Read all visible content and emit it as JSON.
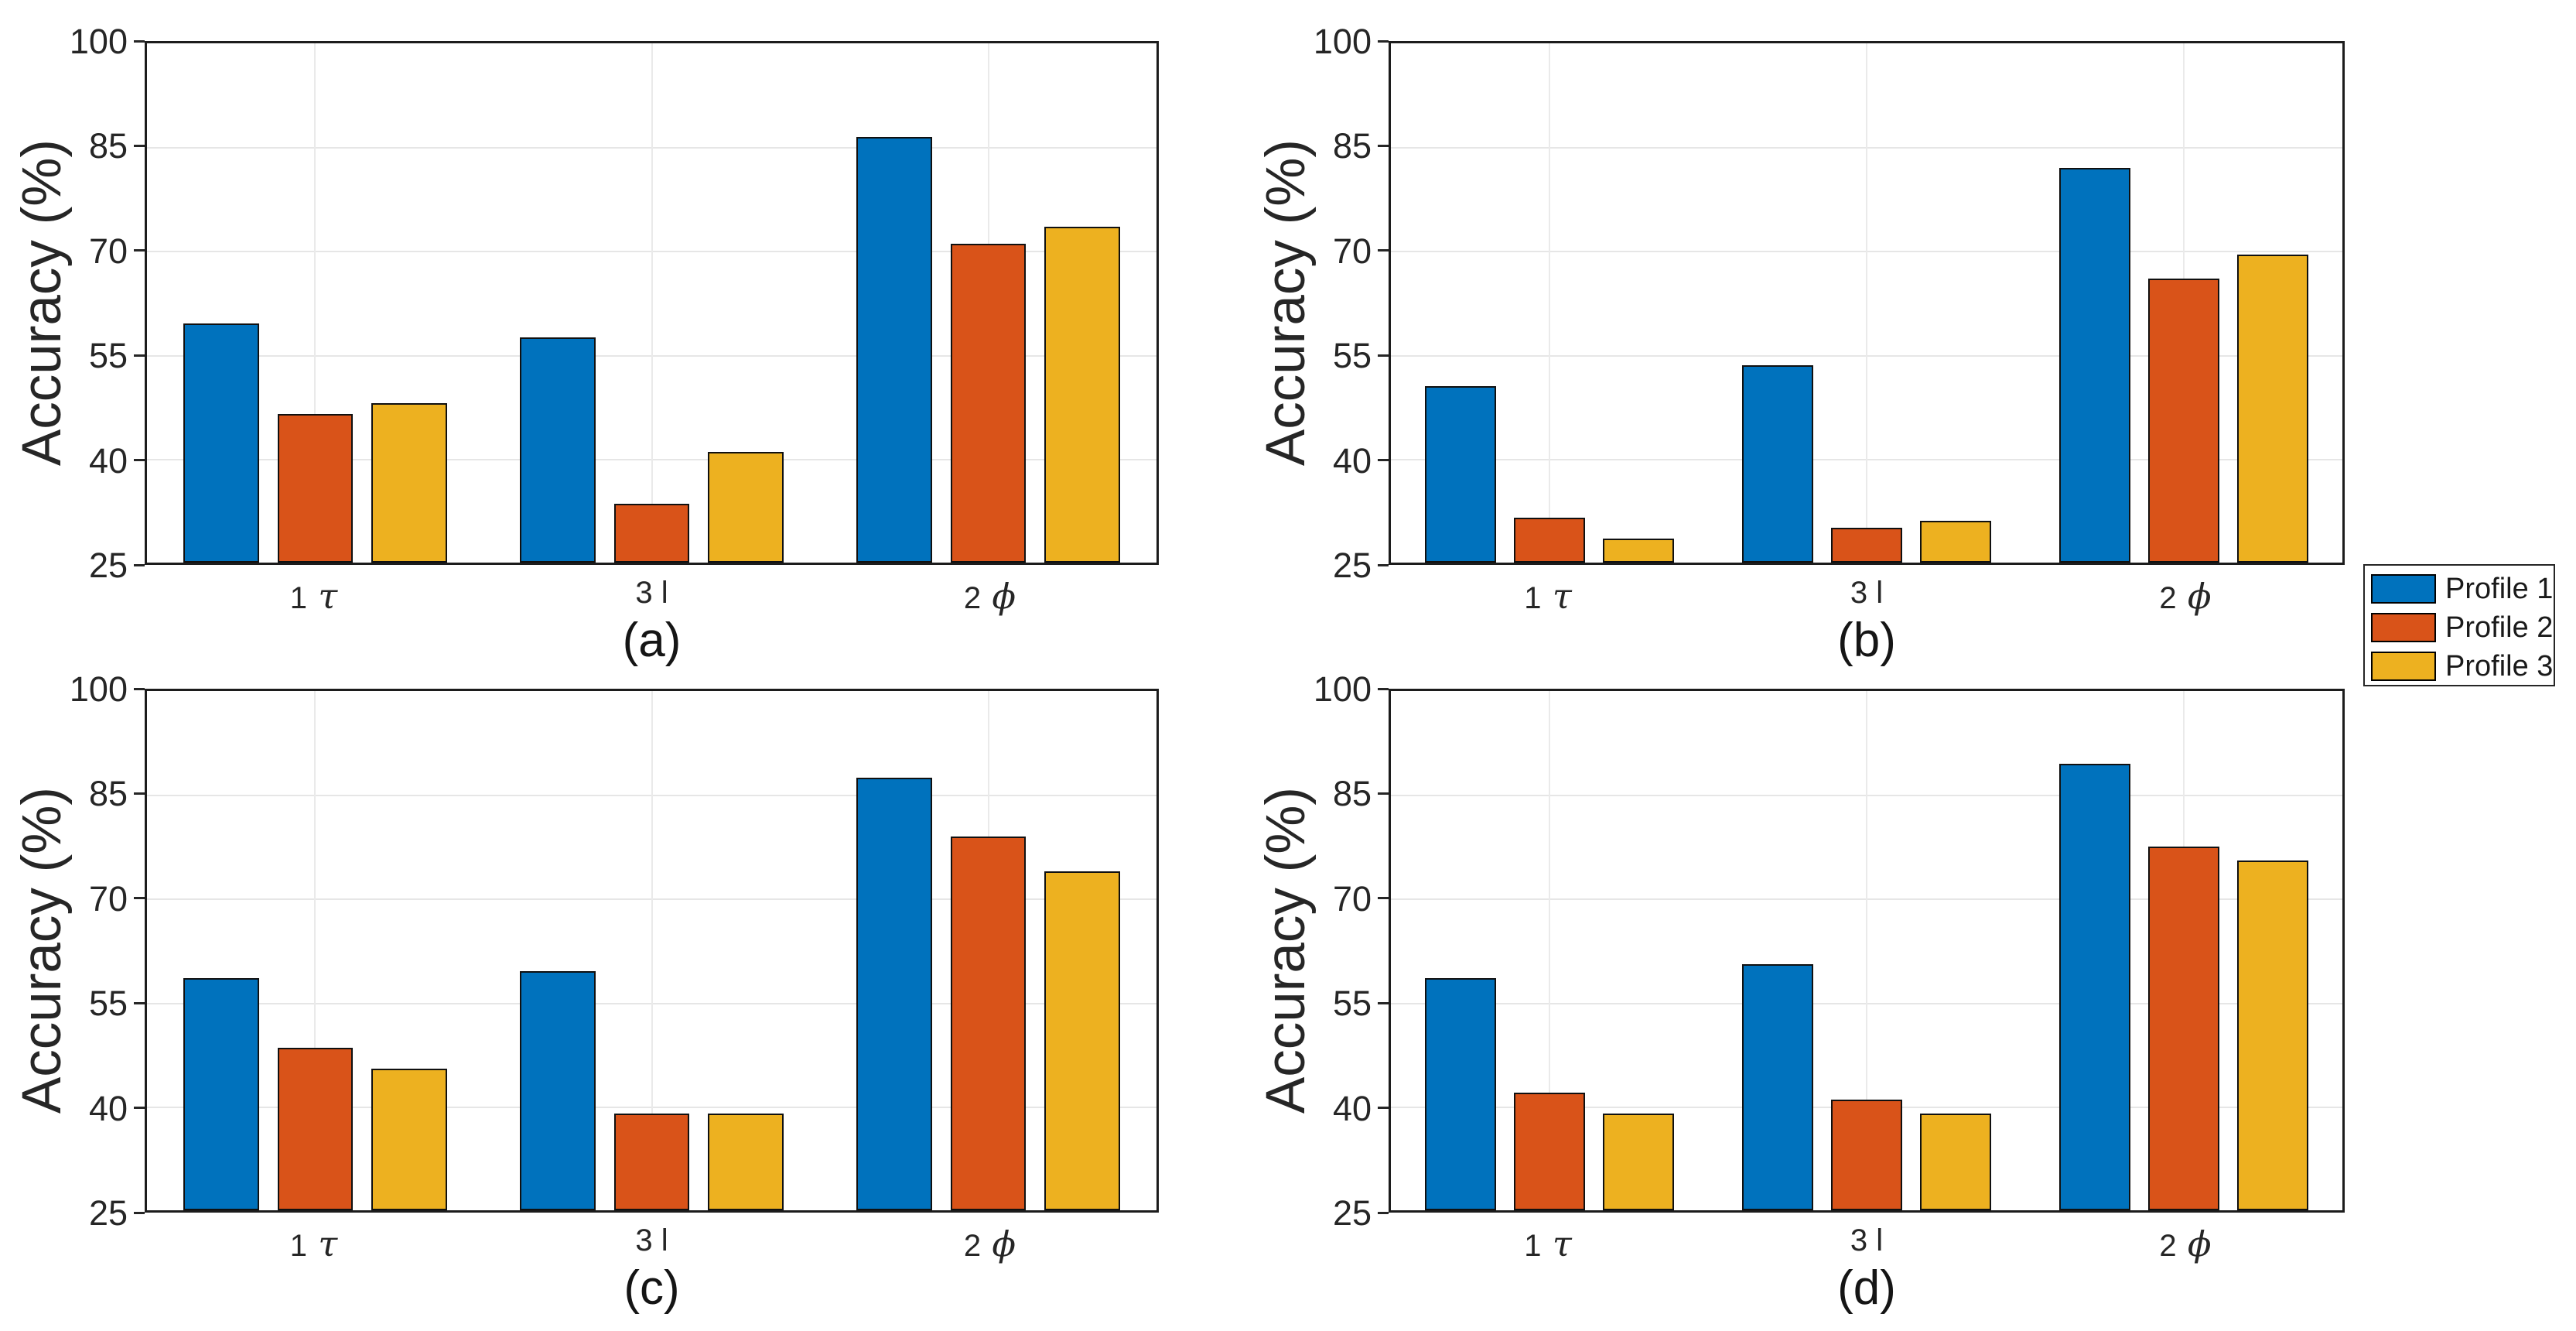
{
  "figure": {
    "ylabel": "Accuracy (%)",
    "background": "#ffffff",
    "axis_color": "#262626",
    "grid_color": "#e6e6e6",
    "legend": {
      "position": "right-outside-middle",
      "entries": [
        {
          "label": "Profile 1",
          "color": "#0072BD"
        },
        {
          "label": "Profile 2",
          "color": "#D95319"
        },
        {
          "label": "Profile 3",
          "color": "#EDB120"
        }
      ]
    }
  },
  "chart_data": [
    {
      "type": "bar",
      "title": "(a)",
      "categories": [
        "1 τ",
        "3 l",
        "2 ϕ"
      ],
      "series": [
        {
          "name": "Profile 1",
          "color": "#0072BD",
          "values": [
            59.5,
            57.5,
            86.5
          ]
        },
        {
          "name": "Profile 2",
          "color": "#D95319",
          "values": [
            46.5,
            33.5,
            71.0
          ]
        },
        {
          "name": "Profile 3",
          "color": "#EDB120",
          "values": [
            48.0,
            41.0,
            73.5
          ]
        }
      ],
      "xlabel": "",
      "ylabel": "Accuracy (%)",
      "ylim": [
        25,
        100
      ],
      "yticks": [
        25,
        40,
        55,
        70,
        85,
        100
      ],
      "grid": true,
      "legend_position": "shared-right"
    },
    {
      "type": "bar",
      "title": "(b)",
      "categories": [
        "1 τ",
        "3 l",
        "2 ϕ"
      ],
      "series": [
        {
          "name": "Profile 1",
          "color": "#0072BD",
          "values": [
            50.5,
            53.5,
            82.0
          ]
        },
        {
          "name": "Profile 2",
          "color": "#D95319",
          "values": [
            31.5,
            30.0,
            66.0
          ]
        },
        {
          "name": "Profile 3",
          "color": "#EDB120",
          "values": [
            28.5,
            31.0,
            69.5
          ]
        }
      ],
      "xlabel": "",
      "ylabel": "Accuracy (%)",
      "ylim": [
        25,
        100
      ],
      "yticks": [
        25,
        40,
        55,
        70,
        85,
        100
      ],
      "grid": true,
      "legend_position": "shared-right"
    },
    {
      "type": "bar",
      "title": "(c)",
      "categories": [
        "1 τ",
        "3 l",
        "2 ϕ"
      ],
      "series": [
        {
          "name": "Profile 1",
          "color": "#0072BD",
          "values": [
            58.5,
            59.5,
            87.5
          ]
        },
        {
          "name": "Profile 2",
          "color": "#D95319",
          "values": [
            48.5,
            39.0,
            79.0
          ]
        },
        {
          "name": "Profile 3",
          "color": "#EDB120",
          "values": [
            45.5,
            39.0,
            74.0
          ]
        }
      ],
      "xlabel": "",
      "ylabel": "Accuracy (%)",
      "ylim": [
        25,
        100
      ],
      "yticks": [
        25,
        40,
        55,
        70,
        85,
        100
      ],
      "grid": true,
      "legend_position": "shared-right"
    },
    {
      "type": "bar",
      "title": "(d)",
      "categories": [
        "1 τ",
        "3 l",
        "2 ϕ"
      ],
      "series": [
        {
          "name": "Profile 1",
          "color": "#0072BD",
          "values": [
            58.5,
            60.5,
            89.5
          ]
        },
        {
          "name": "Profile 2",
          "color": "#D95319",
          "values": [
            42.0,
            41.0,
            77.5
          ]
        },
        {
          "name": "Profile 3",
          "color": "#EDB120",
          "values": [
            39.0,
            39.0,
            75.5
          ]
        }
      ],
      "xlabel": "",
      "ylabel": "Accuracy (%)",
      "ylim": [
        25,
        100
      ],
      "yticks": [
        25,
        40,
        55,
        70,
        85,
        100
      ],
      "grid": true,
      "legend_position": "shared-right"
    }
  ]
}
